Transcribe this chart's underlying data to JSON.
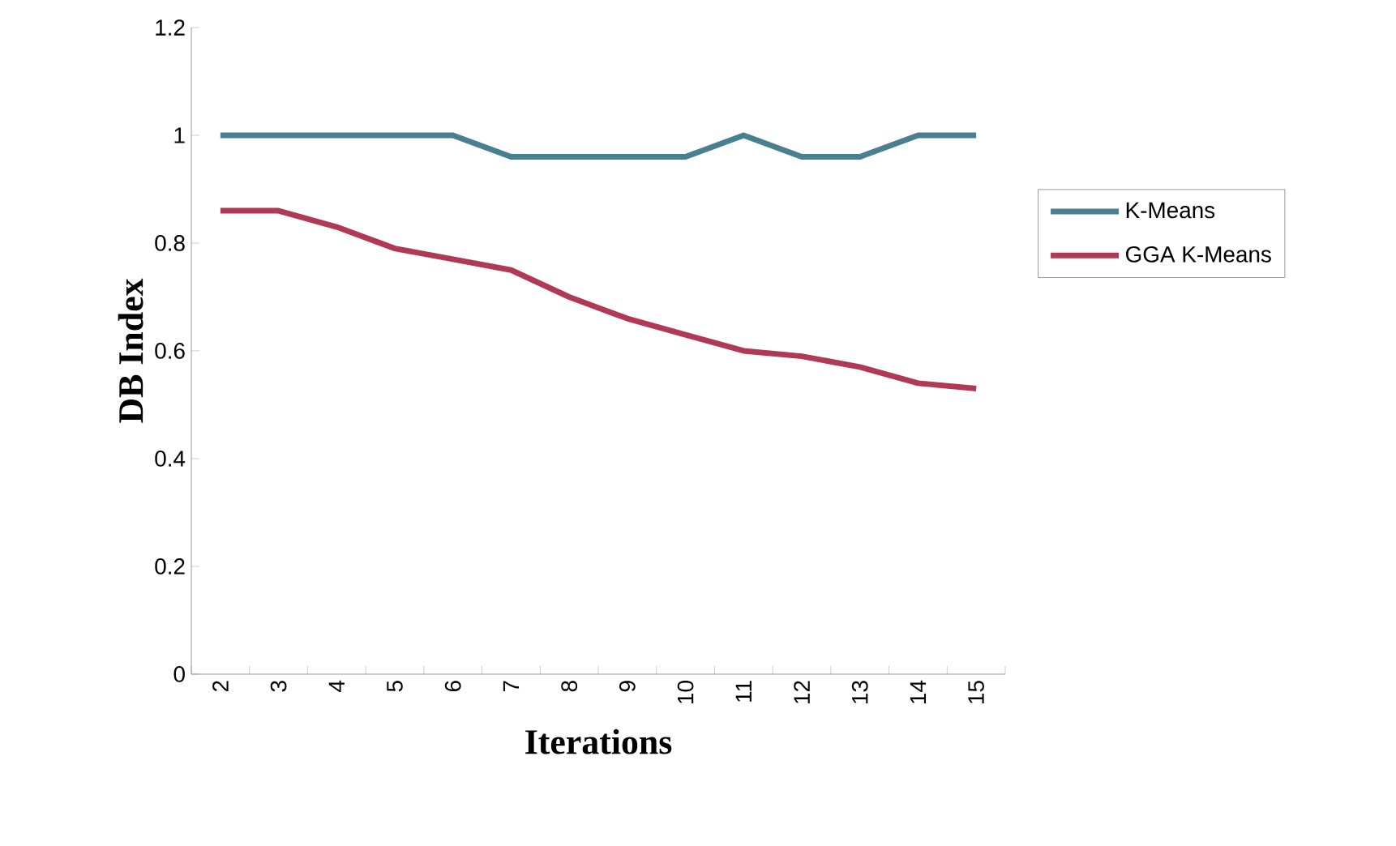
{
  "chart_data": {
    "type": "line",
    "xlabel": "Iterations",
    "ylabel": "DB Index",
    "categories": [
      "2",
      "3",
      "4",
      "5",
      "6",
      "7",
      "8",
      "9",
      "10",
      "11",
      "12",
      "13",
      "14",
      "15"
    ],
    "series": [
      {
        "name": "K-Means",
        "color": "#4a7f91",
        "values": [
          1.0,
          1.0,
          1.0,
          1.0,
          1.0,
          0.96,
          0.96,
          0.96,
          0.96,
          1.0,
          0.96,
          0.96,
          1.0,
          1.0
        ]
      },
      {
        "name": "GGA K-Means",
        "color": "#b03a55",
        "values": [
          0.86,
          0.86,
          0.83,
          0.79,
          0.77,
          0.75,
          0.7,
          0.66,
          0.63,
          0.6,
          0.59,
          0.57,
          0.54,
          0.53
        ]
      }
    ],
    "ylim": [
      0,
      1.2
    ],
    "yticks": [
      0,
      0.2,
      0.4,
      0.6,
      0.8,
      1,
      1.2
    ],
    "legend": "right"
  }
}
